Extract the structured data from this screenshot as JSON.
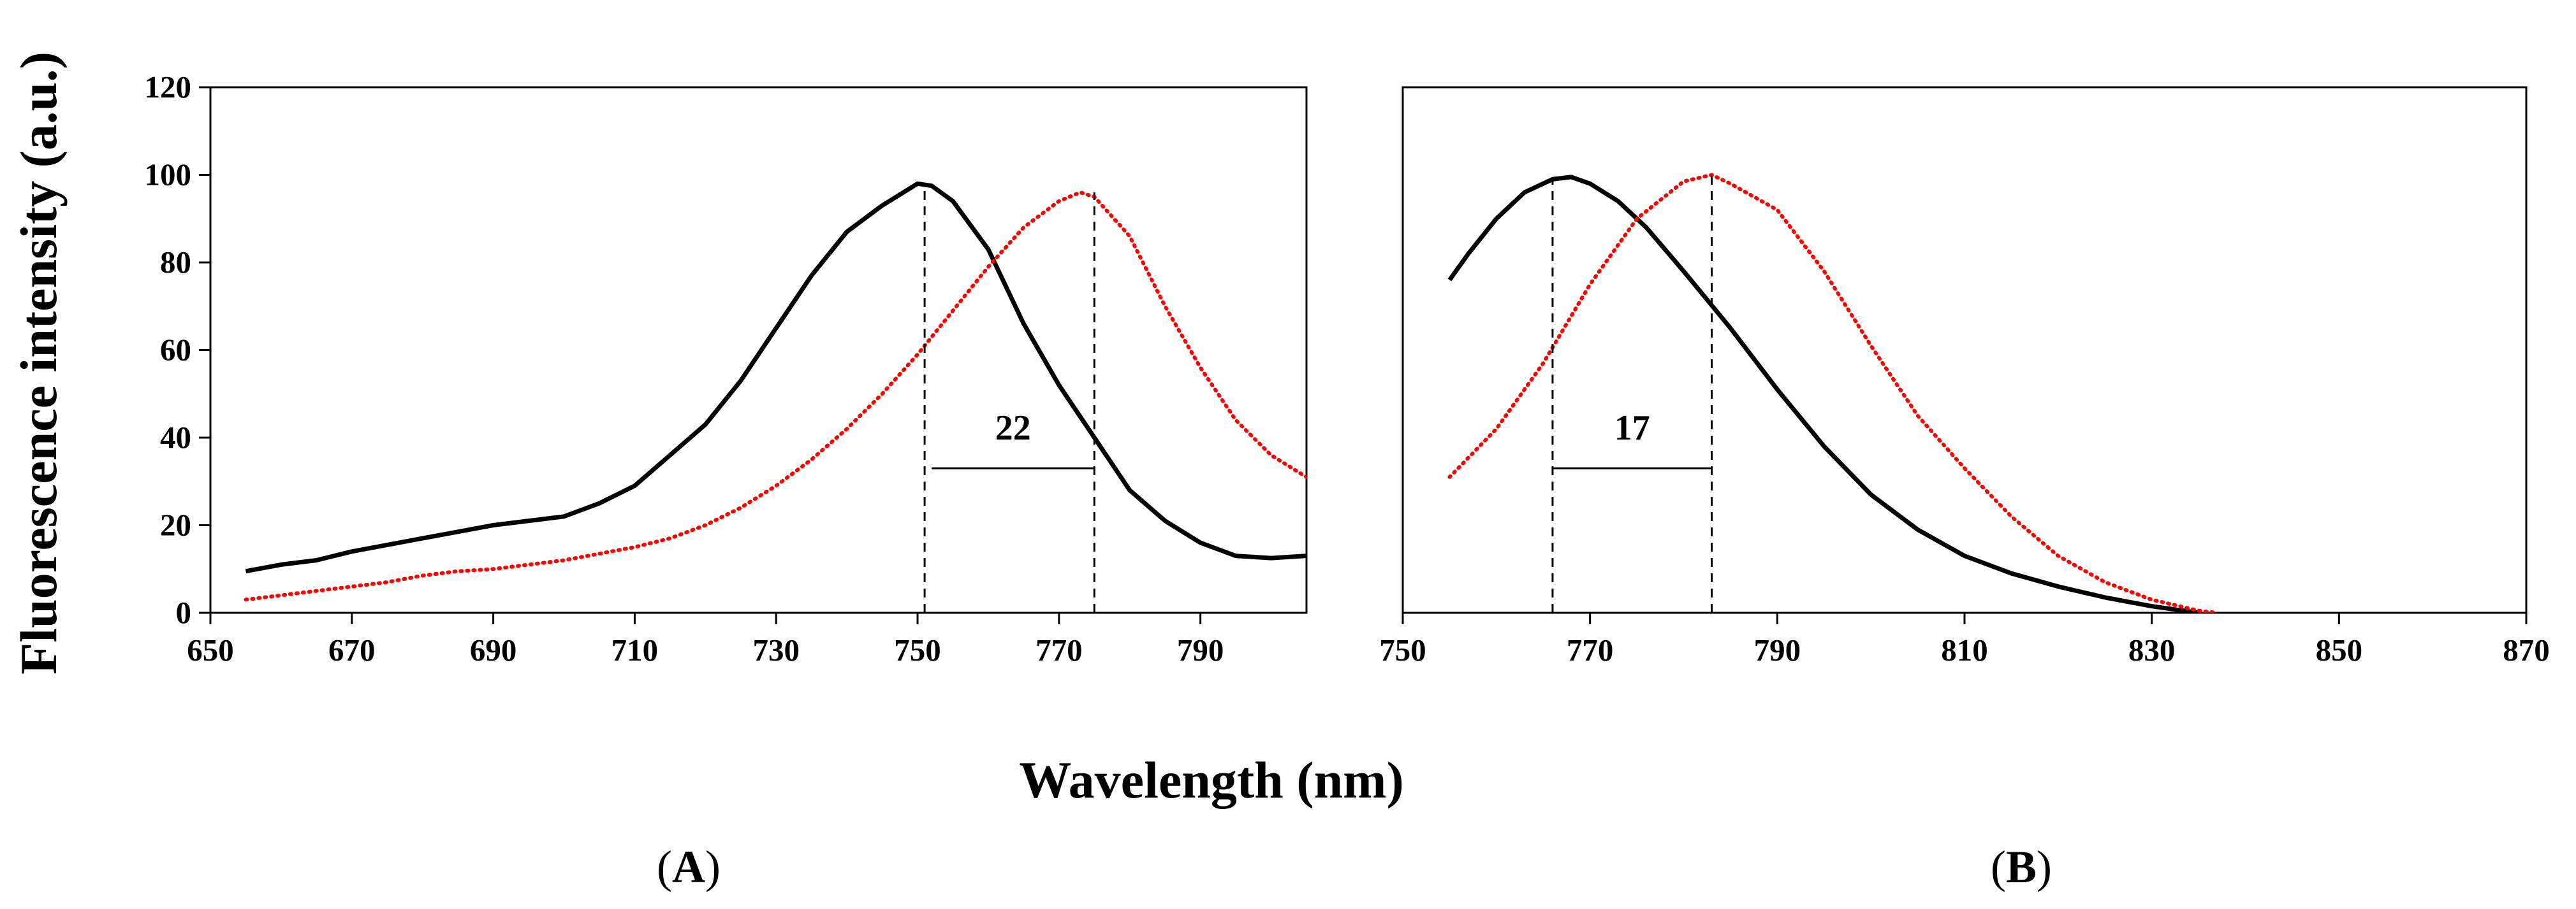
{
  "shared": {
    "ylabel": "Fluorescence intensity (a.u.)",
    "xlabel": "Wavelength (nm)"
  },
  "chart_data": [
    {
      "panel": "A",
      "panel_label": "A",
      "type": "line",
      "xlim": [
        650,
        805
      ],
      "ylim": [
        0,
        120
      ],
      "xticks": [
        650,
        670,
        690,
        710,
        730,
        750,
        770,
        790
      ],
      "yticks": [
        0,
        20,
        40,
        60,
        80,
        100,
        120
      ],
      "series": [
        {
          "name": "solid",
          "color": "#000000",
          "style": "solid",
          "x": [
            655,
            660,
            665,
            670,
            675,
            680,
            685,
            690,
            695,
            700,
            705,
            710,
            715,
            720,
            725,
            730,
            735,
            740,
            745,
            748,
            750,
            752,
            755,
            760,
            765,
            770,
            775,
            780,
            785,
            790,
            795,
            800,
            805
          ],
          "y": [
            9.5,
            11,
            12,
            14,
            15.5,
            17,
            18.5,
            20,
            21,
            22,
            25,
            29,
            36,
            43,
            53,
            65,
            77,
            87,
            93,
            96,
            98,
            97.5,
            94,
            83,
            66,
            52,
            40,
            28,
            21,
            16,
            13,
            12.5,
            13
          ]
        },
        {
          "name": "dotted",
          "color": "#ff0000",
          "style": "dotted",
          "x": [
            655,
            660,
            665,
            670,
            675,
            680,
            685,
            690,
            695,
            700,
            705,
            710,
            715,
            720,
            725,
            730,
            735,
            740,
            745,
            750,
            755,
            760,
            765,
            770,
            773,
            775,
            780,
            785,
            790,
            795,
            800,
            805
          ],
          "y": [
            3,
            4,
            5,
            6,
            7,
            8.5,
            9.5,
            10,
            11,
            12,
            13.5,
            15,
            17,
            20,
            24,
            29,
            35,
            42,
            50,
            59,
            69,
            79,
            88,
            94,
            96,
            95,
            86,
            70,
            56,
            44,
            36,
            31
          ]
        }
      ],
      "annotations": [
        {
          "type": "vline",
          "x": 751,
          "y_top": 98
        },
        {
          "type": "vline",
          "x": 775,
          "y_top": 96
        },
        {
          "type": "span",
          "x1": 752,
          "x2": 775,
          "y": 33,
          "label": "22"
        }
      ]
    },
    {
      "panel": "B",
      "panel_label": "B",
      "type": "line",
      "xlim": [
        750,
        870
      ],
      "ylim": [
        0,
        120
      ],
      "xticks": [
        750,
        770,
        790,
        810,
        830,
        850,
        870
      ],
      "yticks": [
        0,
        20,
        40,
        60,
        80,
        100,
        120
      ],
      "series": [
        {
          "name": "solid",
          "color": "#000000",
          "style": "solid",
          "x": [
            755,
            757,
            760,
            763,
            766,
            768,
            770,
            773,
            776,
            780,
            785,
            790,
            795,
            800,
            805,
            810,
            815,
            820,
            825,
            830,
            835
          ],
          "y": [
            76,
            82,
            90,
            96,
            99,
            99.5,
            98,
            94,
            88,
            78,
            65,
            51,
            38,
            27,
            19,
            13,
            9,
            6,
            3.5,
            1.5,
            0
          ]
        },
        {
          "name": "dotted",
          "color": "#ff0000",
          "style": "dotted",
          "x": [
            755,
            760,
            765,
            770,
            775,
            780,
            783,
            785,
            790,
            795,
            800,
            805,
            810,
            815,
            820,
            825,
            830,
            835,
            837
          ],
          "y": [
            31,
            42,
            57,
            75,
            90,
            98.5,
            100,
            98,
            92,
            78,
            61,
            45,
            33,
            22,
            13,
            7,
            3,
            0.5,
            0
          ]
        }
      ],
      "annotations": [
        {
          "type": "vline",
          "x": 766,
          "y_top": 99
        },
        {
          "type": "vline",
          "x": 783,
          "y_top": 100
        },
        {
          "type": "span",
          "x1": 766,
          "x2": 783,
          "y": 33,
          "label": "17"
        }
      ]
    }
  ]
}
